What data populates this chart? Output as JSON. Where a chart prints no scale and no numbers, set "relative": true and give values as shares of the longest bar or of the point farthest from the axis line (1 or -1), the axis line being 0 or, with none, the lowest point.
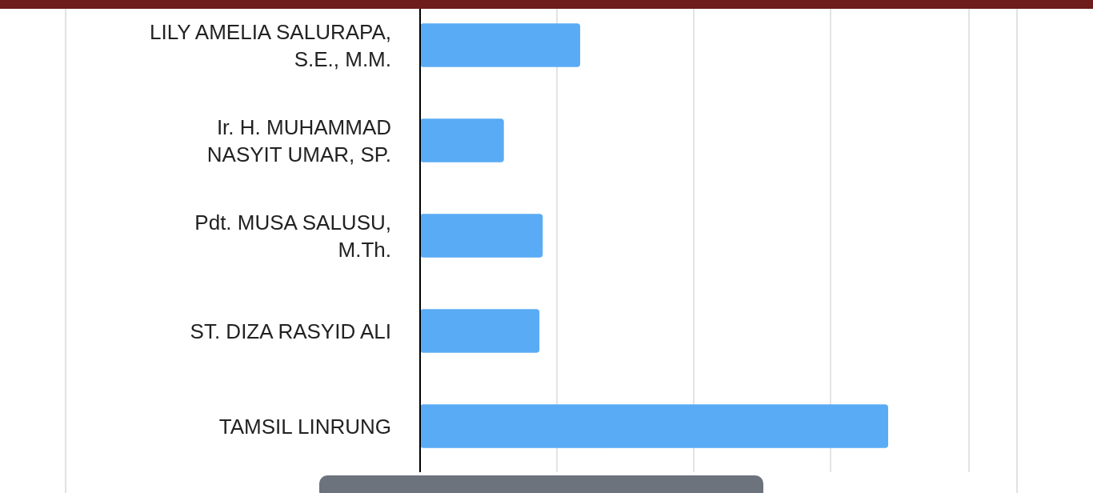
{
  "chart_data": {
    "type": "bar",
    "orientation": "horizontal",
    "relative": true,
    "grid": "x",
    "color": "#5aabf5",
    "categories": [
      "LILY AMELIA SALURAPA, S.E., M.M.",
      "Ir. H. MUHAMMAD NASYIT UMAR, SP.",
      "Pdt. MUSA SALUSU, M.Th.",
      "ST. DIZA RASYID ALI",
      "TAMSIL LINRUNG"
    ],
    "values": [
      0.342,
      0.179,
      0.262,
      0.255,
      1
    ]
  }
}
